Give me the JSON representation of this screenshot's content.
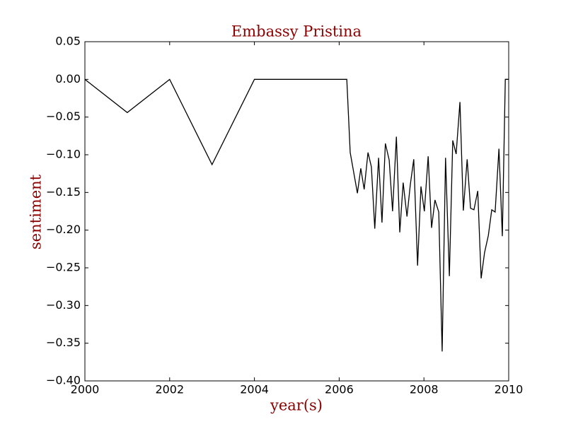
{
  "chart_data": {
    "type": "line",
    "title": "Embassy Pristina",
    "x_label": "year(s)",
    "y_label": "sentiment",
    "x": [
      2000,
      2001,
      2002,
      2003,
      2004,
      2006.18,
      2006.26,
      2006.43,
      2006.51,
      2006.59,
      2006.68,
      2006.76,
      2006.84,
      2006.93,
      2007.01,
      2007.09,
      2007.18,
      2007.26,
      2007.35,
      2007.43,
      2007.51,
      2007.6,
      2007.68,
      2007.76,
      2007.85,
      2007.93,
      2008.01,
      2008.1,
      2008.18,
      2008.26,
      2008.35,
      2008.43,
      2008.51,
      2008.6,
      2008.68,
      2008.76,
      2008.85,
      2008.93,
      2009.02,
      2009.1,
      2009.18,
      2009.27,
      2009.35,
      2009.43,
      2009.52,
      2009.6,
      2009.68,
      2009.77,
      2009.85,
      2009.92,
      2010
    ],
    "series": [
      {
        "name": "sentiment",
        "color": "#000000",
        "values": [
          0,
          -0.044,
          0,
          -0.113,
          0,
          0,
          -0.097,
          -0.151,
          -0.118,
          -0.146,
          -0.097,
          -0.116,
          -0.198,
          -0.104,
          -0.19,
          -0.085,
          -0.107,
          -0.175,
          -0.076,
          -0.203,
          -0.137,
          -0.182,
          -0.139,
          -0.106,
          -0.247,
          -0.142,
          -0.175,
          -0.102,
          -0.197,
          -0.16,
          -0.176,
          -0.361,
          -0.104,
          -0.261,
          -0.081,
          -0.099,
          -0.03,
          -0.174,
          -0.106,
          -0.171,
          -0.173,
          -0.148,
          -0.264,
          -0.23,
          -0.207,
          -0.173,
          -0.176,
          -0.092,
          -0.208,
          0,
          0
        ]
      }
    ],
    "xlim": [
      2000,
      2010
    ],
    "xticks": [
      2000,
      2002,
      2004,
      2006,
      2008,
      2010
    ],
    "ylim": [
      -0.4,
      0.05
    ],
    "yticks": [
      {
        "value": -0.4,
        "label": "−0.40"
      },
      {
        "value": -0.35,
        "label": "−0.35"
      },
      {
        "value": -0.3,
        "label": "−0.30"
      },
      {
        "value": -0.25,
        "label": "−0.25"
      },
      {
        "value": -0.2,
        "label": "−0.20"
      },
      {
        "value": -0.15,
        "label": "−0.15"
      },
      {
        "value": -0.1,
        "label": "−0.10"
      },
      {
        "value": -0.05,
        "label": "−0.05"
      },
      {
        "value": 0,
        "label": "0.00"
      },
      {
        "value": 0.05,
        "label": "0.05"
      }
    ],
    "grid": false,
    "title_color": "#8b0000"
  }
}
